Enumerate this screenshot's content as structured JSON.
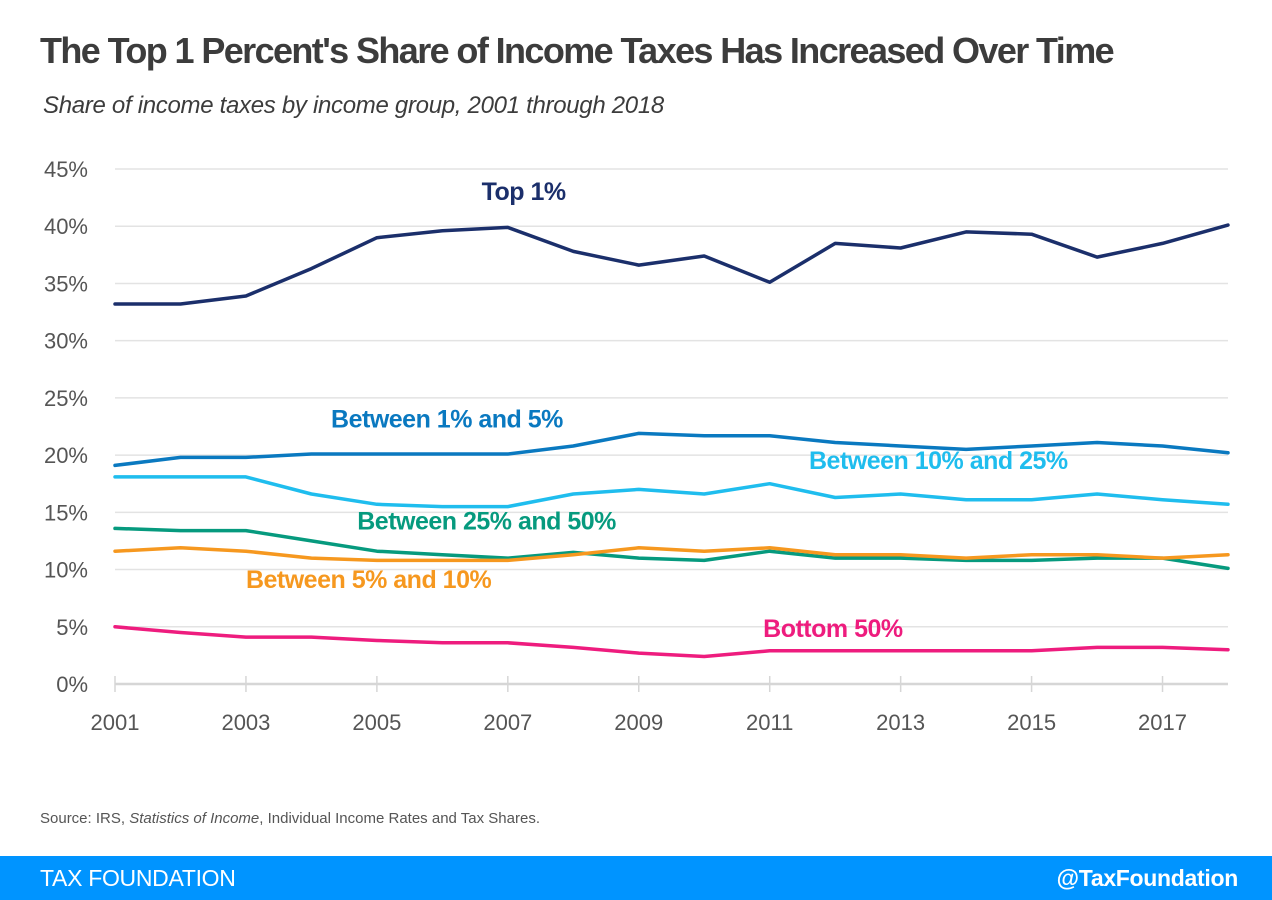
{
  "header": {
    "title": "The Top 1 Percent's Share of Income Taxes Has Increased Over Time",
    "subtitle": "Share of income taxes by income group, 2001 through 2018"
  },
  "source": {
    "prefix": "Source: IRS, ",
    "italic": "Statistics of Income",
    "suffix": ", Individual Income Rates and Tax Shares."
  },
  "footer": {
    "brand": "TAX FOUNDATION",
    "handle": "@TaxFoundation",
    "background": "#0094ff"
  },
  "chart_data": {
    "type": "line",
    "title": "The Top 1 Percent's Share of Income Taxes Has Increased Over Time",
    "subtitle": "Share of income taxes by income group, 2001 through 2018",
    "xlabel": "",
    "ylabel": "",
    "x": [
      2001,
      2002,
      2003,
      2004,
      2005,
      2006,
      2007,
      2008,
      2009,
      2010,
      2011,
      2012,
      2013,
      2014,
      2015,
      2016,
      2017,
      2018
    ],
    "x_tick_labels": [
      "2001",
      "2003",
      "2005",
      "2007",
      "2009",
      "2011",
      "2013",
      "2015",
      "2017"
    ],
    "ylim": [
      0,
      45
    ],
    "y_tick_labels": [
      "0%",
      "5%",
      "10%",
      "15%",
      "20%",
      "25%",
      "30%",
      "35%",
      "40%",
      "45%"
    ],
    "grid": true,
    "legend": "inline-labels",
    "series": [
      {
        "name": "Top 1%",
        "color": "#1b2f6b",
        "values": [
          33.2,
          33.2,
          33.9,
          36.3,
          39.0,
          39.6,
          39.9,
          37.8,
          36.6,
          37.4,
          35.1,
          38.5,
          38.1,
          39.5,
          39.3,
          37.3,
          38.5,
          40.1
        ]
      },
      {
        "name": "Between 1% and 5%",
        "color": "#0a79c0",
        "values": [
          19.1,
          19.8,
          19.8,
          20.1,
          20.1,
          20.1,
          20.1,
          20.8,
          21.9,
          21.7,
          21.7,
          21.1,
          20.8,
          20.5,
          20.8,
          21.1,
          20.8,
          20.2
        ]
      },
      {
        "name": "Between 10% and 25%",
        "color": "#1fbdee",
        "values": [
          18.1,
          18.1,
          18.1,
          16.6,
          15.7,
          15.5,
          15.5,
          16.6,
          17.0,
          16.6,
          17.5,
          16.3,
          16.6,
          16.1,
          16.1,
          16.6,
          16.1,
          15.7
        ]
      },
      {
        "name": "Between 25% and 50%",
        "color": "#069a7e",
        "values": [
          13.6,
          13.4,
          13.4,
          12.5,
          11.6,
          11.3,
          11.0,
          11.5,
          11.0,
          10.8,
          11.6,
          11.0,
          11.0,
          10.8,
          10.8,
          11.0,
          11.0,
          10.1
        ]
      },
      {
        "name": "Between 5% and 10%",
        "color": "#f6981f",
        "values": [
          11.6,
          11.9,
          11.6,
          11.0,
          10.8,
          10.8,
          10.8,
          11.3,
          11.9,
          11.6,
          11.9,
          11.3,
          11.3,
          11.0,
          11.3,
          11.3,
          11.0,
          11.3
        ]
      },
      {
        "name": "Bottom 50%",
        "color": "#ee1c7e",
        "values": [
          5.0,
          4.5,
          4.1,
          4.1,
          3.8,
          3.6,
          3.6,
          3.2,
          2.7,
          2.4,
          2.9,
          2.9,
          2.9,
          2.9,
          2.9,
          3.2,
          3.2,
          3.0
        ]
      }
    ],
    "annotations": [
      {
        "text": "Top 1%",
        "series": "Top 1%",
        "year": 2006.6,
        "value": 42.3
      },
      {
        "text": "Between 1% and 5%",
        "series": "Between 1% and 5%",
        "year": 2004.3,
        "value": 22.4
      },
      {
        "text": "Between 10% and 25%",
        "series": "Between 10% and 25%",
        "year": 2011.6,
        "value": 18.8
      },
      {
        "text": "Between 25% and 50%",
        "series": "Between 25% and 50%",
        "year": 2004.7,
        "value": 13.5
      },
      {
        "text": "Between 5% and 10%",
        "series": "Between 5% and 10%",
        "year": 2003.0,
        "value": 8.4
      },
      {
        "text": "Bottom 50%",
        "series": "Bottom 50%",
        "year": 2010.9,
        "value": 4.1
      }
    ]
  }
}
